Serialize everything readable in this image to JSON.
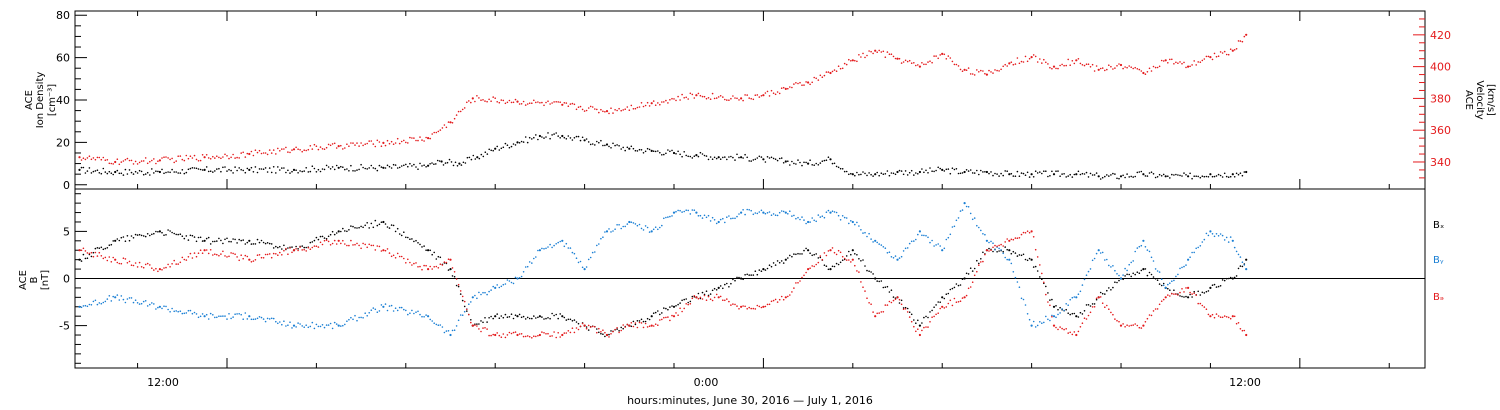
{
  "footer": {
    "xlabel": "hours:minutes, June 30, 2016 — July  1, 2016"
  },
  "x_ticks": [
    "12:00",
    "0:00",
    "12:00"
  ],
  "colors": {
    "black": "#000000",
    "blue": "#1a7fd4",
    "red": "#e41a1c"
  },
  "chart_data": [
    {
      "type": "scatter",
      "panel": "top",
      "x_units": "hours since 2016-06-30 00:00 (axis shown as hours:minutes)",
      "xlim": [
        8.6,
        38.8
      ],
      "ylabel_left": [
        "ACE",
        "Ion Density",
        "[cm⁻³]"
      ],
      "ylabel_right": [
        "ACE",
        "Velocity",
        "[km/s]"
      ],
      "ylim_left": [
        -2,
        82
      ],
      "ylim_right": [
        323,
        435
      ],
      "y_ticks_left": [
        "0",
        "20",
        "40",
        "60",
        "80"
      ],
      "y_ticks_right": [
        "340",
        "360",
        "380",
        "400",
        "420"
      ],
      "series": [
        {
          "color": "black",
          "axis": "left",
          "x": [
            8.7,
            9.5,
            10.5,
            11.5,
            12.5,
            13.5,
            14.5,
            15.5,
            16.5,
            16.8,
            17.2,
            17.6,
            18,
            18.5,
            19,
            19.5,
            20,
            20.5,
            21,
            21.5,
            22,
            22.5,
            23,
            23.5,
            24,
            24.5,
            25,
            25.5,
            26,
            26.5,
            27,
            27.5,
            28,
            28.5,
            29,
            29.5,
            30,
            30.5,
            31,
            31.5,
            32,
            32.5,
            33,
            33.5,
            34,
            34.5,
            34.8
          ],
          "y": [
            7,
            6,
            6,
            7,
            7,
            7,
            8,
            8,
            9,
            11,
            10,
            13,
            17,
            20,
            23,
            23,
            21,
            19,
            17,
            16,
            15,
            14,
            13,
            13,
            12,
            11,
            10,
            12,
            5,
            5,
            6,
            6,
            7,
            6,
            6,
            5,
            5,
            5,
            5,
            4,
            4,
            5,
            4,
            4,
            5,
            5,
            6
          ]
        },
        {
          "color": "red",
          "axis": "right",
          "x": [
            8.7,
            9.5,
            10.5,
            11.5,
            12.5,
            13.5,
            14.5,
            15.5,
            16.5,
            17,
            17.5,
            18.5,
            19.5,
            20.5,
            21.5,
            22.5,
            23.5,
            24,
            24.5,
            25,
            25.5,
            26,
            26.5,
            27,
            27.5,
            28,
            28.5,
            29,
            29.5,
            30,
            30.5,
            31,
            31.5,
            32,
            32.5,
            33,
            33.5,
            34,
            34.5,
            34.8
          ],
          "y": [
            343,
            340,
            341,
            343,
            345,
            348,
            350,
            352,
            355,
            365,
            380,
            378,
            376,
            372,
            377,
            382,
            380,
            382,
            386,
            390,
            396,
            404,
            410,
            405,
            400,
            408,
            398,
            395,
            402,
            406,
            400,
            404,
            398,
            401,
            396,
            404,
            400,
            406,
            410,
            420
          ]
        }
      ]
    },
    {
      "type": "scatter",
      "panel": "bottom",
      "x_units": "hours since 2016-06-30 00:00 (axis shown as hours:minutes)",
      "xlim": [
        8.6,
        38.8
      ],
      "ylabel_left": [
        "ACE",
        "B",
        "[nT]"
      ],
      "ylim": [
        -9.5,
        9.5
      ],
      "y_ticks": [
        "-5",
        "0",
        "5"
      ],
      "zero_line": true,
      "series": [
        {
          "name": "Bₓ",
          "color": "black",
          "x": [
            8.7,
            9.5,
            10.5,
            11.5,
            12.5,
            13.5,
            14.5,
            15.5,
            16.5,
            17,
            17.5,
            18,
            18.5,
            19,
            19.5,
            20,
            20.5,
            21,
            21.5,
            22,
            22.5,
            23,
            23.5,
            24,
            24.5,
            25,
            25.5,
            26,
            26.5,
            27,
            27.5,
            28,
            28.5,
            29,
            29.5,
            30,
            30.5,
            31,
            31.5,
            32,
            32.5,
            33,
            33.5,
            34,
            34.5,
            34.8
          ],
          "y": [
            2,
            4,
            5,
            4,
            4,
            3,
            5,
            6,
            3,
            1,
            -5,
            -4,
            -4,
            -4,
            -4,
            -5,
            -6,
            -5,
            -4,
            -3,
            -2,
            -1,
            0,
            1,
            2,
            3,
            1,
            3,
            0,
            -2,
            -5,
            -2,
            0,
            3,
            3,
            2,
            -3,
            -4,
            -2,
            0,
            1,
            -1,
            -2,
            -1,
            0,
            2
          ]
        },
        {
          "name": "Bᵧ",
          "color": "blue",
          "x": [
            8.7,
            9.5,
            10.5,
            11.5,
            12.5,
            13.5,
            14.5,
            15.5,
            16.5,
            17,
            17.5,
            18,
            18.5,
            19,
            19.5,
            20,
            20.5,
            21,
            21.5,
            22,
            22.5,
            23,
            23.5,
            24,
            24.5,
            25,
            25.5,
            26,
            26.5,
            27,
            27.5,
            28,
            28.5,
            29,
            29.5,
            30,
            30.5,
            31,
            31.5,
            32,
            32.5,
            33,
            33.5,
            34,
            34.5,
            34.8
          ],
          "y": [
            -3,
            -2,
            -3,
            -4,
            -4,
            -5,
            -5,
            -3,
            -4,
            -6,
            -2,
            -1,
            0,
            3,
            4,
            1,
            5,
            6,
            5,
            7,
            7,
            6,
            7,
            7,
            7,
            6,
            7,
            6,
            4,
            2,
            5,
            3,
            8,
            4,
            2,
            -5,
            -4,
            -2,
            3,
            0,
            4,
            -1,
            2,
            5,
            4,
            1
          ]
        },
        {
          "name": "Bₔ",
          "color": "red",
          "x": [
            8.7,
            9.5,
            10.5,
            11.5,
            12.5,
            13.5,
            14.5,
            15.5,
            16.5,
            17,
            17.5,
            18,
            18.5,
            19,
            19.5,
            20,
            20.5,
            21,
            21.5,
            22,
            22.5,
            23,
            23.5,
            24,
            24.5,
            25,
            25.5,
            26,
            26.5,
            27,
            27.5,
            28,
            28.5,
            29,
            29.5,
            30,
            30.5,
            31,
            31.5,
            32,
            32.5,
            33,
            33.5,
            34,
            34.5,
            34.8
          ],
          "y": [
            3,
            2,
            1,
            3,
            2,
            3,
            4,
            3,
            1,
            2,
            -5,
            -6,
            -6,
            -6,
            -6,
            -5,
            -6,
            -5,
            -5,
            -4,
            -2,
            -2,
            -3,
            -3,
            -2,
            1,
            3,
            2,
            -4,
            -2,
            -6,
            -3,
            -2,
            3,
            4,
            5,
            -5,
            -6,
            -2,
            -5,
            -5,
            -2,
            -1,
            -4,
            -4,
            -6
          ]
        }
      ]
    }
  ]
}
